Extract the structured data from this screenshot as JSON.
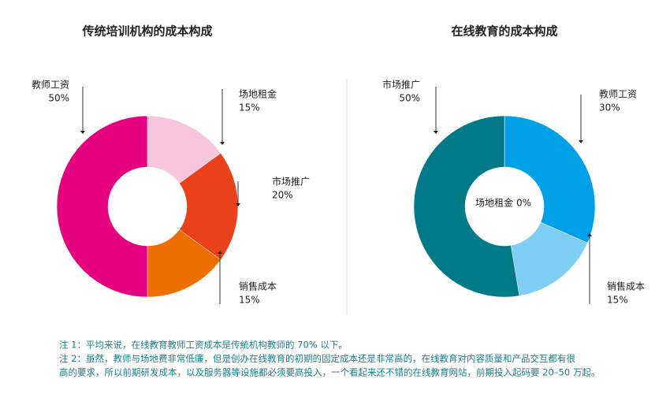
{
  "chart_data": [
    {
      "type": "donut",
      "title": "传统培训机构的成本构成",
      "categories": [
        "场地租金",
        "市场推广",
        "销售成本",
        "教师工资"
      ],
      "values": [
        15,
        20,
        15,
        50
      ],
      "value_labels": [
        "15%",
        "20%",
        "15%",
        "50%"
      ],
      "colors": [
        "#f7c6dd",
        "#e8411b",
        "#ee6f00",
        "#e4007f"
      ]
    },
    {
      "type": "donut",
      "title": "在线教育的成本构成",
      "categories": [
        "场地租金",
        "教师工资",
        "销售成本",
        "市场推广"
      ],
      "values": [
        0,
        30,
        15,
        50
      ],
      "value_labels": [
        "0%",
        "30%",
        "15%",
        "50%"
      ],
      "colors": [
        "#cccccc",
        "#00a0e9",
        "#7ecef4",
        "#007a87"
      ]
    }
  ],
  "notes": [
    "注 1：平均来说，在线教育教师工资成本是传统机构教师的 70% 以下。",
    "注 2：虽然，教师与场地费非常低廉，但是创办在线教育的初期的固定成本还是非常高的，在线教育对内容质量和产品交互都有很",
    "高的要求，所以前期研发成本，以及服务器等设施都必须要高投入，一个看起来还不错的在线教育网站，前期投入起码要 20–50 万起。"
  ]
}
